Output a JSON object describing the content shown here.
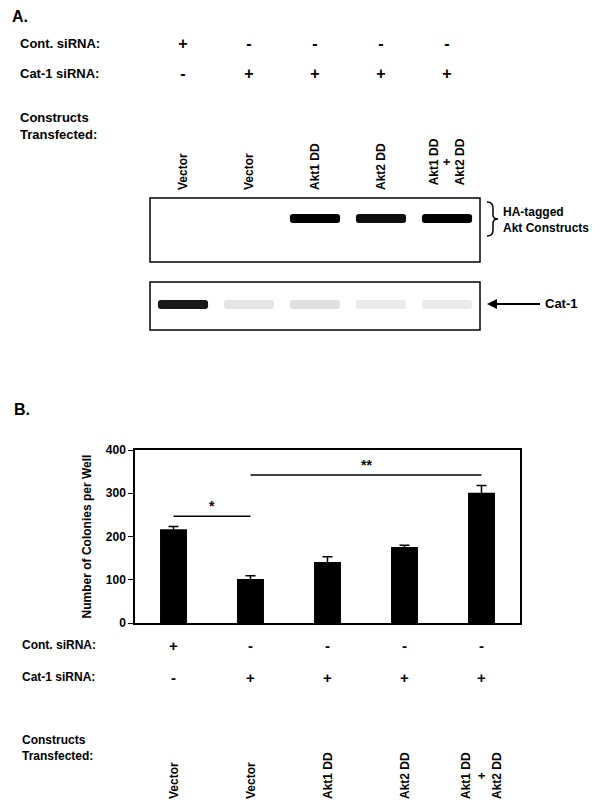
{
  "panel_a": {
    "label": "A.",
    "rows": [
      {
        "label": [
          "Cont. siRNA:"
        ],
        "values": [
          "+",
          "-",
          "-",
          "-",
          "-"
        ]
      },
      {
        "label": [
          "Cat-1 siRNA:"
        ],
        "values": [
          "-",
          "+",
          "+",
          "+",
          "+"
        ]
      }
    ],
    "lanes_label": [
      "Constructs",
      "Transfected:"
    ],
    "lanes": [
      "Vector",
      "Vector",
      "Akt1 DD",
      "Akt2 DD",
      "Akt1 DD + Akt2 DD"
    ],
    "blots": [
      {
        "label": [
          "HA-tagged",
          "Akt Constructs"
        ],
        "marker": "bracket",
        "intensity": [
          0,
          0,
          1,
          0.95,
          1
        ]
      },
      {
        "label": [
          "Cat-1"
        ],
        "marker": "arrow",
        "intensity": [
          0.9,
          0.1,
          0.12,
          0.08,
          0.08
        ]
      }
    ]
  },
  "chart_data": {
    "type": "bar",
    "panel_label": "B.",
    "y_label": "Number of Colonies per Well",
    "categories": [
      "Vector",
      "Vector",
      "Akt1 DD",
      "Akt2 DD",
      "Akt1 DD + Akt2 DD"
    ],
    "values": [
      217,
      102,
      141,
      176,
      301
    ],
    "errors": [
      6,
      7,
      12,
      4,
      17
    ],
    "color": "#000000",
    "ylim": [
      0,
      400
    ],
    "yticks": [
      0,
      100,
      200,
      300,
      400
    ],
    "grid": false,
    "tick_labels": "y",
    "x_rows": [
      {
        "label": [
          "Cont. siRNA:"
        ],
        "values": [
          "+",
          "-",
          "-",
          "-",
          "-"
        ]
      },
      {
        "label": [
          "Cat-1 siRNA:"
        ],
        "values": [
          "-",
          "+",
          "+",
          "+",
          "+"
        ]
      }
    ],
    "x_rows_label": [
      "Constructs",
      "Transfected:"
    ],
    "significance": [
      {
        "text": "*",
        "from": 0,
        "to": 1
      },
      {
        "text": "**",
        "from": 1,
        "to": 4
      }
    ]
  }
}
